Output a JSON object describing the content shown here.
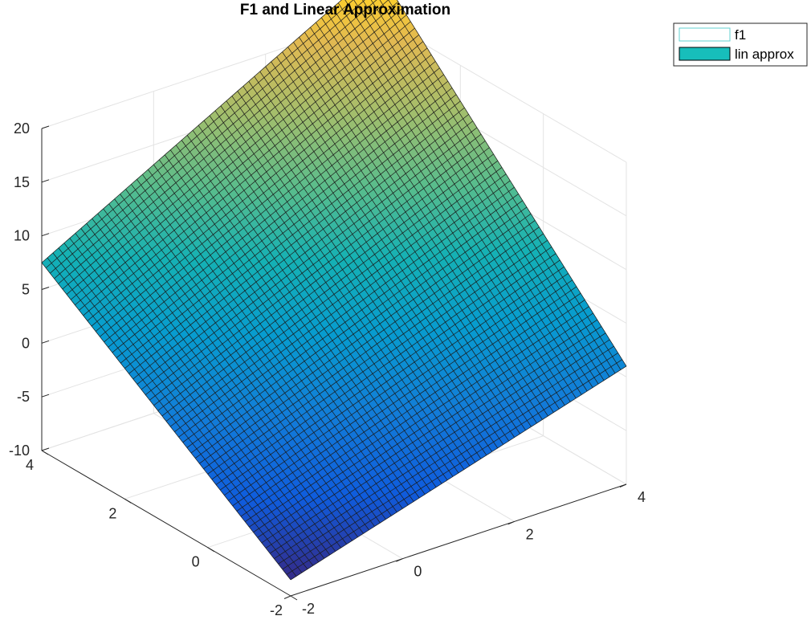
{
  "chart_data": {
    "type": "surface3d",
    "title": "F1 and Linear Approximation",
    "xlim": [
      -2,
      4
    ],
    "ylim": [
      -2,
      4
    ],
    "zlim": [
      -10,
      20
    ],
    "x_ticks": [
      -2,
      0,
      2,
      4
    ],
    "y_ticks": [
      -2,
      0,
      2,
      4
    ],
    "z_ticks": [
      -10,
      -5,
      0,
      5,
      10,
      15,
      20
    ],
    "mesh_count": 60,
    "surface_corners": {
      "x_min_y_min": -8.5,
      "x_max_y_min": 1.0,
      "x_min_y_max": 7.5,
      "x_max_y_max": 24.5
    },
    "colormap": "parula",
    "color_range": [
      -8.5,
      24.5
    ],
    "grid": true,
    "legend": {
      "location": "top-right",
      "entries": [
        {
          "label": "f1",
          "face_color": "#ffffff",
          "edge_color": "#62d0d0"
        },
        {
          "label": "lin approx",
          "face_color": "#17bebb",
          "edge_color": "#000000"
        }
      ]
    }
  }
}
